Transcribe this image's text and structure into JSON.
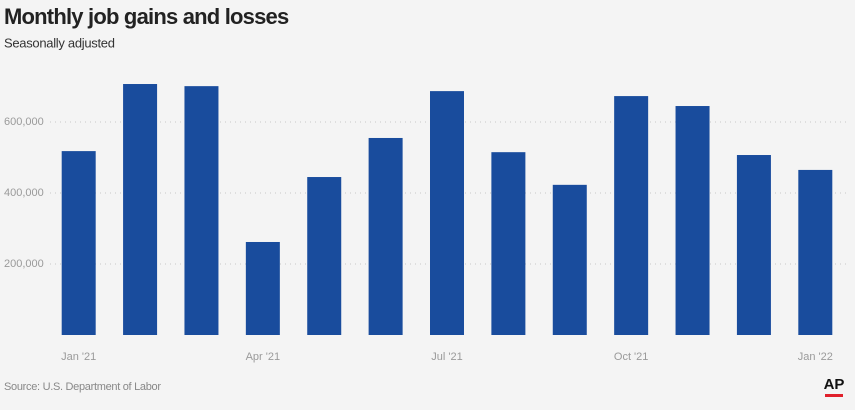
{
  "chart_data": {
    "type": "bar",
    "title": "Monthly job gains and losses",
    "subtitle": "Seasonally adjusted",
    "categories": [
      "Jan '21",
      null,
      null,
      "Apr '21",
      null,
      null,
      "Jul '21",
      null,
      null,
      "Oct '21",
      null,
      null,
      "Jan '22"
    ],
    "values": [
      518000,
      707000,
      701000,
      262000,
      445000,
      555000,
      687000,
      515000,
      423000,
      673000,
      645000,
      507000,
      465000
    ],
    "color": "#194c9d",
    "ylim": [
      0,
      750000
    ],
    "yticks": [
      {
        "value": 200000,
        "label": "200,000"
      },
      {
        "value": 400000,
        "label": "400,000"
      },
      {
        "value": 600000,
        "label": "600,000"
      }
    ],
    "grid": true,
    "source": "Source: U.S. Department of Labor",
    "logo": "AP"
  }
}
